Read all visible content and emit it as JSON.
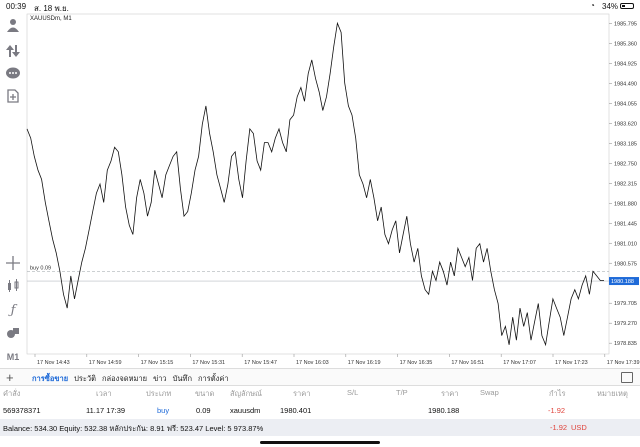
{
  "status_bar": {
    "time": "00:39",
    "date": "ส. 18 พ.ย.",
    "battery": "34%"
  },
  "chart": {
    "symbol_label": "XAUUSDm, M1",
    "buy_label": "buy 0.09",
    "current_price": "1980.188",
    "colors": {
      "line": "#111111",
      "price_tag": "#1e6ad8",
      "buy_line": "#9aa0a6"
    }
  },
  "chart_data": {
    "type": "line",
    "title": "XAUUSDm, M1",
    "x_ticks": [
      "17 Nov 14:43",
      "17 Nov 14:59",
      "17 Nov 15:15",
      "17 Nov 15:31",
      "17 Nov 15:47",
      "17 Nov 16:03",
      "17 Nov 16:19",
      "17 Nov 16:35",
      "17 Nov 16:51",
      "17 Nov 17:07",
      "17 Nov 17:23",
      "17 Nov 17:39"
    ],
    "y_ticks": [
      1985.795,
      1985.36,
      1984.925,
      1984.49,
      1984.055,
      1983.62,
      1983.185,
      1982.75,
      1982.315,
      1981.88,
      1981.445,
      1981.01,
      1980.575,
      1980.14,
      1979.705,
      1979.27,
      1978.835
    ],
    "ylim": [
      1978.6,
      1986.0
    ],
    "buy_price": 1980.401,
    "current_price": 1980.188,
    "values": [
      1983.5,
      1983.3,
      1982.9,
      1982.6,
      1982.4,
      1981.9,
      1981.5,
      1981.1,
      1980.8,
      1980.4,
      1979.9,
      1979.6,
      1980.3,
      1979.8,
      1980.2,
      1980.6,
      1980.9,
      1981.3,
      1981.7,
      1982.1,
      1982.3,
      1981.9,
      1982.6,
      1982.8,
      1983.1,
      1983.0,
      1982.5,
      1981.8,
      1981.4,
      1981.2,
      1982.0,
      1982.4,
      1982.1,
      1981.6,
      1981.9,
      1982.6,
      1982.3,
      1982.0,
      1982.5,
      1982.7,
      1982.9,
      1983.0,
      1982.2,
      1981.6,
      1981.7,
      1982.1,
      1982.6,
      1982.9,
      1983.6,
      1984.0,
      1983.4,
      1983.0,
      1982.5,
      1982.2,
      1981.9,
      1982.3,
      1982.9,
      1983.0,
      1982.4,
      1982.0,
      1982.8,
      1983.5,
      1983.4,
      1982.8,
      1982.6,
      1983.2,
      1983.2,
      1983.0,
      1983.3,
      1983.5,
      1983.2,
      1983.0,
      1983.7,
      1983.8,
      1984.2,
      1984.4,
      1984.1,
      1984.7,
      1985.0,
      1984.6,
      1984.3,
      1983.9,
      1984.2,
      1984.7,
      1985.3,
      1985.8,
      1985.6,
      1984.5,
      1984.0,
      1983.8,
      1983.3,
      1982.5,
      1982.3,
      1982.0,
      1982.4,
      1982.0,
      1981.5,
      1981.8,
      1981.2,
      1981.0,
      1981.3,
      1981.5,
      1980.8,
      1981.2,
      1981.6,
      1981.0,
      1980.6,
      1980.9,
      1980.3,
      1980.0,
      1979.9,
      1980.4,
      1980.2,
      1980.6,
      1980.4,
      1980.1,
      1980.6,
      1980.3,
      1980.9,
      1980.7,
      1980.5,
      1980.7,
      1980.2,
      1980.9,
      1981.0,
      1980.6,
      1980.9,
      1980.4,
      1980.0,
      1979.7,
      1979.0,
      1979.2,
      1978.8,
      1979.4,
      1978.9,
      1979.6,
      1979.2,
      1979.5,
      1978.9,
      1979.3,
      1979.7,
      1979.0,
      1978.8,
      1979.3,
      1979.8,
      1979.6,
      1979.4,
      1979.0,
      1979.4,
      1979.8,
      1980.0,
      1979.8,
      1980.1,
      1980.3,
      1979.9,
      1980.4,
      1980.3,
      1980.2,
      1980.2
    ]
  },
  "left_toolbar": {
    "icons": [
      "account-icon",
      "trade-icon",
      "chat-icon",
      "new-order-icon",
      "crosshair-icon",
      "indicators-icon",
      "function-icon",
      "objects-icon"
    ],
    "timeframe": "M1"
  },
  "tabs": [
    "การซื้อขาย",
    "ประวัติ",
    "กล่องจดหมาย",
    "ข่าว",
    "บันทึก",
    "การตั้งค่า"
  ],
  "table": {
    "headers": [
      "คำสั่ง",
      "เวลา",
      "ประเภท",
      "ขนาด",
      "สัญลักษณ์",
      "ราคา",
      "S/L",
      "T/P",
      "ราคา",
      "Swap",
      "กำไร",
      "หมายเหตุ"
    ],
    "row": {
      "order": "569378371",
      "time": "11.17 17:39",
      "type": "buy",
      "size": "0.09",
      "symbol": "xauusdm",
      "open_price": "1980.401",
      "sl": "",
      "tp": "",
      "price": "1980.188",
      "swap": "",
      "profit": "-1.92",
      "comment": ""
    }
  },
  "balance": {
    "text": "Balance: 534.30 Equity: 532.38 หลักประกัน: 8.91 ฟรี: 523.47 Level: 5 973.87%",
    "profit": "-1.92",
    "currency": "USD"
  }
}
